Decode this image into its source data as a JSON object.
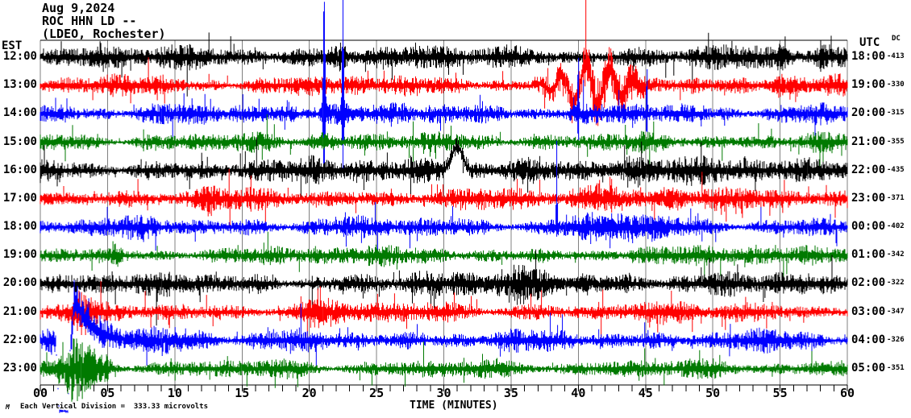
{
  "header": {
    "date": "Aug 9,2024",
    "station": "ROC HHN LD --",
    "network": "(LDEO, Rochester)"
  },
  "axes": {
    "left_time_label": "EST",
    "right_time_label": "UTC",
    "dc_column_label": "DC",
    "x_title": "TIME (MINUTES)",
    "x_tick_labels": [
      "00",
      "05",
      "10",
      "15",
      "20",
      "25",
      "30",
      "35",
      "40",
      "45",
      "50",
      "55",
      "60"
    ],
    "footnote": "Each Vertical Division =  333.33 microvolts",
    "logo_mark": "M"
  },
  "chart_data": {
    "type": "line",
    "subtype": "helicorder-seismogram",
    "title": "ROC HHN LD -- (LDEO, Rochester) Aug 9,2024",
    "xlabel": "TIME (MINUTES)",
    "x_range": [
      0,
      60
    ],
    "grid_interval_minutes": 5,
    "minor_tick_minutes": 1,
    "vertical_division_microvolts": 333.33,
    "legend_position": "none",
    "grid": true,
    "colors": {
      "black": "#000000",
      "red": "#ff0000",
      "blue": "#0000ff",
      "green": "#007a00",
      "grid": "#808080",
      "axis": "#000000",
      "border_sides": "#808080"
    },
    "rows": [
      {
        "est": "12:00",
        "utc": "18:00",
        "dc": "-413",
        "color": "black",
        "noise_amp": 11,
        "seed": 11,
        "events": [
          {
            "kind": "burst",
            "minute": 22.3,
            "amp": 14,
            "width": 0.8
          },
          {
            "kind": "burst",
            "minute": 55.2,
            "amp": 12,
            "width": 0.4
          },
          {
            "kind": "burst",
            "minute": 58.0,
            "amp": 12,
            "width": 0.4
          }
        ]
      },
      {
        "est": "13:00",
        "utc": "19:00",
        "dc": "-330",
        "color": "red",
        "noise_amp": 10,
        "seed": 22,
        "events": [
          {
            "kind": "wander",
            "minute": 41.0,
            "amp": 26,
            "width": 2.6
          },
          {
            "kind": "burst",
            "minute": 43.5,
            "amp": 16,
            "width": 1.2
          },
          {
            "kind": "burst",
            "minute": 55.5,
            "amp": 10,
            "width": 1.5
          }
        ]
      },
      {
        "est": "14:00",
        "utc": "20:00",
        "dc": "-315",
        "color": "blue",
        "noise_amp": 10,
        "seed": 33,
        "events": [
          {
            "kind": "spike",
            "minute": 21.1,
            "up": 145,
            "down": 68,
            "width": 0.09
          },
          {
            "kind": "spike",
            "minute": 22.5,
            "up": 145,
            "down": 68,
            "width": 0.07
          },
          {
            "kind": "spike",
            "minute": 40.0,
            "up": 75,
            "down": 30,
            "width": 0.05
          },
          {
            "kind": "spike",
            "minute": 45.1,
            "up": 58,
            "down": 24,
            "width": 0.05
          },
          {
            "kind": "burst",
            "minute": 21.8,
            "amp": 12,
            "width": 1.2
          }
        ]
      },
      {
        "est": "15:00",
        "utc": "21:00",
        "dc": "-355",
        "color": "green",
        "noise_amp": 9,
        "seed": 44,
        "events": [
          {
            "kind": "burst",
            "minute": 21.0,
            "amp": 8,
            "width": 1.0
          }
        ]
      },
      {
        "est": "16:00",
        "utc": "22:00",
        "dc": "-435",
        "color": "black",
        "noise_amp": 12,
        "seed": 55,
        "events": [
          {
            "kind": "bump",
            "minute": 31.0,
            "amp": 30,
            "width": 0.55
          },
          {
            "kind": "burst",
            "minute": 36.0,
            "amp": 10,
            "width": 2.0
          },
          {
            "kind": "burst",
            "minute": 44.0,
            "amp": 10,
            "width": 1.5
          }
        ]
      },
      {
        "est": "17:00",
        "utc": "23:00",
        "dc": "-371",
        "color": "red",
        "noise_amp": 10,
        "seed": 66,
        "events": [
          {
            "kind": "burst",
            "minute": 12.6,
            "amp": 15,
            "width": 0.7
          },
          {
            "kind": "burst",
            "minute": 42.0,
            "amp": 12,
            "width": 2.5
          },
          {
            "kind": "burst",
            "minute": 47.0,
            "amp": 12,
            "width": 1.0
          }
        ]
      },
      {
        "est": "18:00",
        "utc": "00:00",
        "dc": "-402",
        "color": "blue",
        "noise_amp": 10,
        "seed": 77,
        "events": [
          {
            "kind": "spike",
            "minute": 38.4,
            "up": 102,
            "down": 8,
            "width": 0.05
          },
          {
            "kind": "burst",
            "minute": 43.0,
            "amp": 12,
            "width": 3.0
          }
        ]
      },
      {
        "est": "19:00",
        "utc": "01:00",
        "dc": "-342",
        "color": "green",
        "noise_amp": 9,
        "seed": 88,
        "events": [
          {
            "kind": "burst",
            "minute": 5.5,
            "amp": 10,
            "width": 0.4
          }
        ]
      },
      {
        "est": "20:00",
        "utc": "02:00",
        "dc": "-322",
        "color": "black",
        "noise_amp": 11,
        "seed": 99,
        "events": [
          {
            "kind": "burst",
            "minute": 36.0,
            "amp": 14,
            "width": 2.5
          },
          {
            "kind": "burst",
            "minute": 41.0,
            "amp": 10,
            "width": 1.0
          }
        ]
      },
      {
        "est": "21:00",
        "utc": "03:00",
        "dc": "-347",
        "color": "red",
        "noise_amp": 10,
        "seed": 110,
        "events": [
          {
            "kind": "burst",
            "minute": 3.0,
            "amp": 22,
            "width": 0.5
          },
          {
            "kind": "burst",
            "minute": 21.0,
            "amp": 10,
            "width": 1.5
          }
        ]
      },
      {
        "est": "22:00",
        "utc": "04:00",
        "dc": "-326",
        "color": "blue",
        "noise_amp": 10,
        "seed": 121,
        "events": [
          {
            "kind": "recenter",
            "minute": 2.5,
            "amp": 88,
            "width": 1.1
          },
          {
            "kind": "burst",
            "minute": 9.0,
            "amp": 10,
            "width": 3.0
          }
        ]
      },
      {
        "est": "23:00",
        "utc": "05:00",
        "dc": "-351",
        "color": "green",
        "noise_amp": 9,
        "seed": 132,
        "events": [
          {
            "kind": "burst",
            "minute": 2.7,
            "amp": 34,
            "width": 1.2
          },
          {
            "kind": "burst",
            "minute": 4.5,
            "amp": 16,
            "width": 1.0
          }
        ]
      }
    ]
  }
}
